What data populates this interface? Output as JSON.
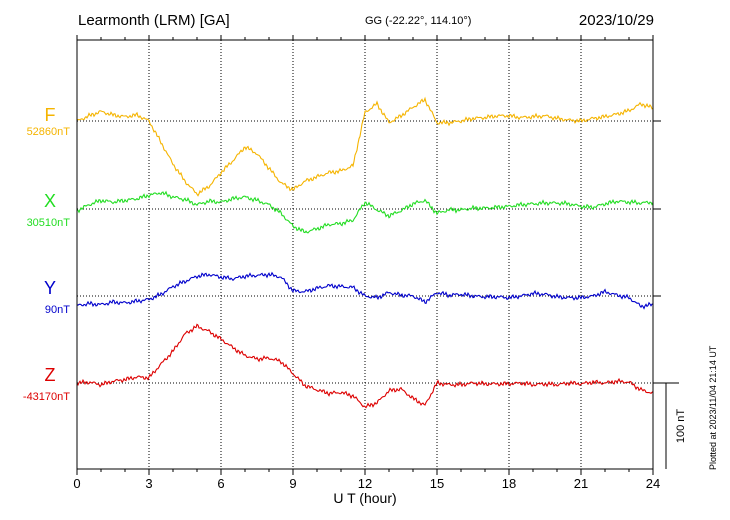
{
  "header": {
    "station": "Learmonth (LRM)  [GA]",
    "coords": "GG (-22.22°, 114.10°)",
    "date": "2023/10/29"
  },
  "footer": {
    "plotted": "Plotted at 2023/11/04 21:14 UT"
  },
  "colors": {
    "F": "#f5b400",
    "X": "#22dd22",
    "Y": "#0000cc",
    "Z": "#dd0000",
    "axis": "#000000",
    "grid": "#000000"
  },
  "chart_data": {
    "type": "line",
    "title": "Learmonth (LRM)  [GA]",
    "xlabel": "U T (hour)",
    "ylabel": "",
    "xlim": [
      0,
      24
    ],
    "x_ticks": [
      0,
      3,
      6,
      9,
      12,
      15,
      18,
      21,
      24
    ],
    "x_tick_labels": [
      "0",
      "3",
      "6",
      "9",
      "12",
      "15",
      "18",
      "21",
      "24"
    ],
    "scale_bar": {
      "value": 100,
      "label": "100 nT"
    },
    "grid": true,
    "series": [
      {
        "name": "F",
        "baseline_label": "52860nT",
        "baseline": 52860,
        "x": [
          0,
          0.5,
          1,
          1.5,
          2,
          2.5,
          3,
          3.5,
          4,
          4.5,
          5,
          5.5,
          6,
          6.5,
          7,
          7.5,
          8,
          8.5,
          9,
          9.5,
          10,
          10.5,
          11,
          11.5,
          12,
          12.5,
          13,
          13.5,
          14,
          14.5,
          15,
          15.5,
          16,
          16.5,
          17,
          17.5,
          18,
          18.5,
          19,
          19.5,
          20,
          20.5,
          21,
          21.5,
          22,
          22.5,
          23,
          23.5,
          24
        ],
        "values": [
          52860,
          52866,
          52871,
          52867,
          52865,
          52867,
          52860,
          52835,
          52810,
          52790,
          52775,
          52784,
          52800,
          52814,
          52830,
          52822,
          52805,
          52788,
          52780,
          52790,
          52795,
          52800,
          52802,
          52808,
          52870,
          52880,
          52858,
          52866,
          52876,
          52885,
          52858,
          52858,
          52860,
          52863,
          52864,
          52866,
          52866,
          52864,
          52865,
          52866,
          52863,
          52861,
          52860,
          52863,
          52865,
          52868,
          52872,
          52880,
          52875
        ]
      },
      {
        "name": "X",
        "baseline_label": "30510nT",
        "baseline": 30510,
        "x": [
          0,
          0.5,
          1,
          1.5,
          2,
          2.5,
          3,
          3.5,
          4,
          4.5,
          5,
          5.5,
          6,
          6.5,
          7,
          7.5,
          8,
          8.5,
          9,
          9.5,
          10,
          10.5,
          11,
          11.5,
          12,
          12.5,
          13,
          13.5,
          14,
          14.5,
          15,
          15.5,
          16,
          16.5,
          17,
          17.5,
          18,
          18.5,
          19,
          19.5,
          20,
          20.5,
          21,
          21.5,
          22,
          22.5,
          23,
          23.5,
          24
        ],
        "values": [
          30508,
          30515,
          30520,
          30518,
          30520,
          30522,
          30526,
          30529,
          30524,
          30521,
          30515,
          30519,
          30518,
          30522,
          30524,
          30520,
          30515,
          30505,
          30490,
          30483,
          30487,
          30492,
          30493,
          30497,
          30518,
          30509,
          30502,
          30508,
          30516,
          30520,
          30505,
          30509,
          30509,
          30511,
          30511,
          30512,
          30513,
          30515,
          30516,
          30517,
          30517,
          30516,
          30513,
          30512,
          30516,
          30519,
          30518,
          30517,
          30518
        ]
      },
      {
        "name": "Y",
        "baseline_label": "90nT",
        "baseline": 90,
        "x": [
          0,
          0.5,
          1,
          1.5,
          2,
          2.5,
          3,
          3.5,
          4,
          4.5,
          5,
          5.5,
          6,
          6.5,
          7,
          7.5,
          8,
          8.5,
          9,
          9.5,
          10,
          10.5,
          11,
          11.5,
          12,
          12.5,
          13,
          13.5,
          14,
          14.5,
          15,
          15.5,
          16,
          16.5,
          17,
          17.5,
          18,
          18.5,
          19,
          19.5,
          20,
          20.5,
          21,
          21.5,
          22,
          22.5,
          23,
          23.5,
          24
        ],
        "values": [
          79,
          81,
          80,
          83,
          82,
          84,
          86,
          92,
          101,
          107,
          113,
          115,
          112,
          110,
          113,
          114,
          115,
          112,
          96,
          95,
          99,
          102,
          101,
          100,
          90,
          88,
          94,
          91,
          90,
          83,
          94,
          91,
          92,
          90,
          89,
          89,
          88,
          90,
          93,
          92,
          89,
          88,
          88,
          90,
          95,
          91,
          88,
          78,
          80
        ]
      },
      {
        "name": "Z",
        "baseline_label": "-43170nT",
        "baseline": -43170,
        "x": [
          0,
          0.5,
          1,
          1.5,
          2,
          2.5,
          3,
          3.5,
          4,
          4.5,
          5,
          5.5,
          6,
          6.5,
          7,
          7.5,
          8,
          8.5,
          9,
          9.5,
          10,
          10.5,
          11,
          11.5,
          12,
          12.5,
          13,
          13.5,
          14,
          14.5,
          15,
          15.5,
          16,
          16.5,
          17,
          17.5,
          18,
          18.5,
          19,
          19.5,
          20,
          20.5,
          21,
          21.5,
          22,
          22.5,
          23,
          23.5,
          24
        ],
        "values": [
          -43170,
          -43169,
          -43172,
          -43168,
          -43166,
          -43163,
          -43164,
          -43148,
          -43133,
          -43113,
          -43104,
          -43110,
          -43119,
          -43129,
          -43138,
          -43142,
          -43141,
          -43145,
          -43159,
          -43173,
          -43178,
          -43182,
          -43181,
          -43185,
          -43198,
          -43193,
          -43179,
          -43177,
          -43188,
          -43196,
          -43170,
          -43172,
          -43172,
          -43170,
          -43171,
          -43171,
          -43171,
          -43170,
          -43172,
          -43171,
          -43172,
          -43170,
          -43171,
          -43169,
          -43170,
          -43168,
          -43169,
          -43178,
          -43182
        ]
      }
    ]
  }
}
